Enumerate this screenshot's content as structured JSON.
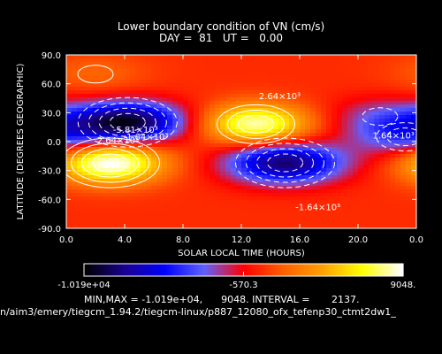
{
  "title": {
    "line1": "Lower boundary condition of VN (cm/s)",
    "line2": "DAY =  81   UT =   0.00"
  },
  "colors": {
    "background": "#000000",
    "text": "#ffffff",
    "colormap": [
      "#000000",
      "#1a0090",
      "#0000ff",
      "#6060ff",
      "#ff0000",
      "#ff6000",
      "#ffa000",
      "#ffff00",
      "#ffffff"
    ]
  },
  "chart_data": {
    "type": "heatmap",
    "xlabel": "SOLAR LOCAL TIME (HOURS)",
    "ylabel": "LATITUDE (DEGREES GEOGRAPHIC)",
    "xlim": [
      0,
      24
    ],
    "ylim": [
      -90,
      90
    ],
    "xticks": [
      "0.0",
      "4.0",
      "8.0",
      "12.0",
      "16.0",
      "20.0",
      "0.0"
    ],
    "yticks": [
      "90.0",
      "60.0",
      "30.0",
      "0.0",
      "-30.0",
      "-60.0",
      "-90.0"
    ],
    "contour_labels": [
      {
        "text": "2.64×10³",
        "x": 13.2,
        "y": 44
      },
      {
        "text": "2.64×10³",
        "x": 2.1,
        "y": -2
      },
      {
        "text": "-5.81×10³",
        "x": 3.2,
        "y": 9
      },
      {
        "text": "-1.64×10³",
        "x": 3.9,
        "y": 2
      },
      {
        "text": "1.64×10³",
        "x": 21.0,
        "y": 3
      },
      {
        "text": "-1.64×10³",
        "x": 15.7,
        "y": -71
      }
    ],
    "features": [
      {
        "kind": "min",
        "x": 4.2,
        "y": 20,
        "value": -10190
      },
      {
        "kind": "min",
        "x": 15.0,
        "y": -22,
        "value": -9000
      },
      {
        "kind": "max",
        "x": 3.0,
        "y": -22,
        "value": 9048
      },
      {
        "kind": "max",
        "x": 13.0,
        "y": 18,
        "value": 8000
      },
      {
        "kind": "max",
        "x": 2.0,
        "y": 70,
        "value": 1500
      },
      {
        "kind": "min",
        "x": 21.5,
        "y": 26,
        "value": -2500
      },
      {
        "kind": "min",
        "x": 23.2,
        "y": 5,
        "value": -4000
      }
    ],
    "colorbar": {
      "min_label": "-1.019e+04",
      "mid_label": "-570.3",
      "max_label": "9048.",
      "min": -10190,
      "max": 9048
    },
    "summary": "MIN,MAX = -1.019e+04,      9048. INTERVAL =       2137."
  },
  "footer": {
    "path": "n/aim3/emery/tiegcm_1.94.2/tiegcm-linux/p887_12080_ofx_tefenp30_ctmt2dw1_"
  }
}
